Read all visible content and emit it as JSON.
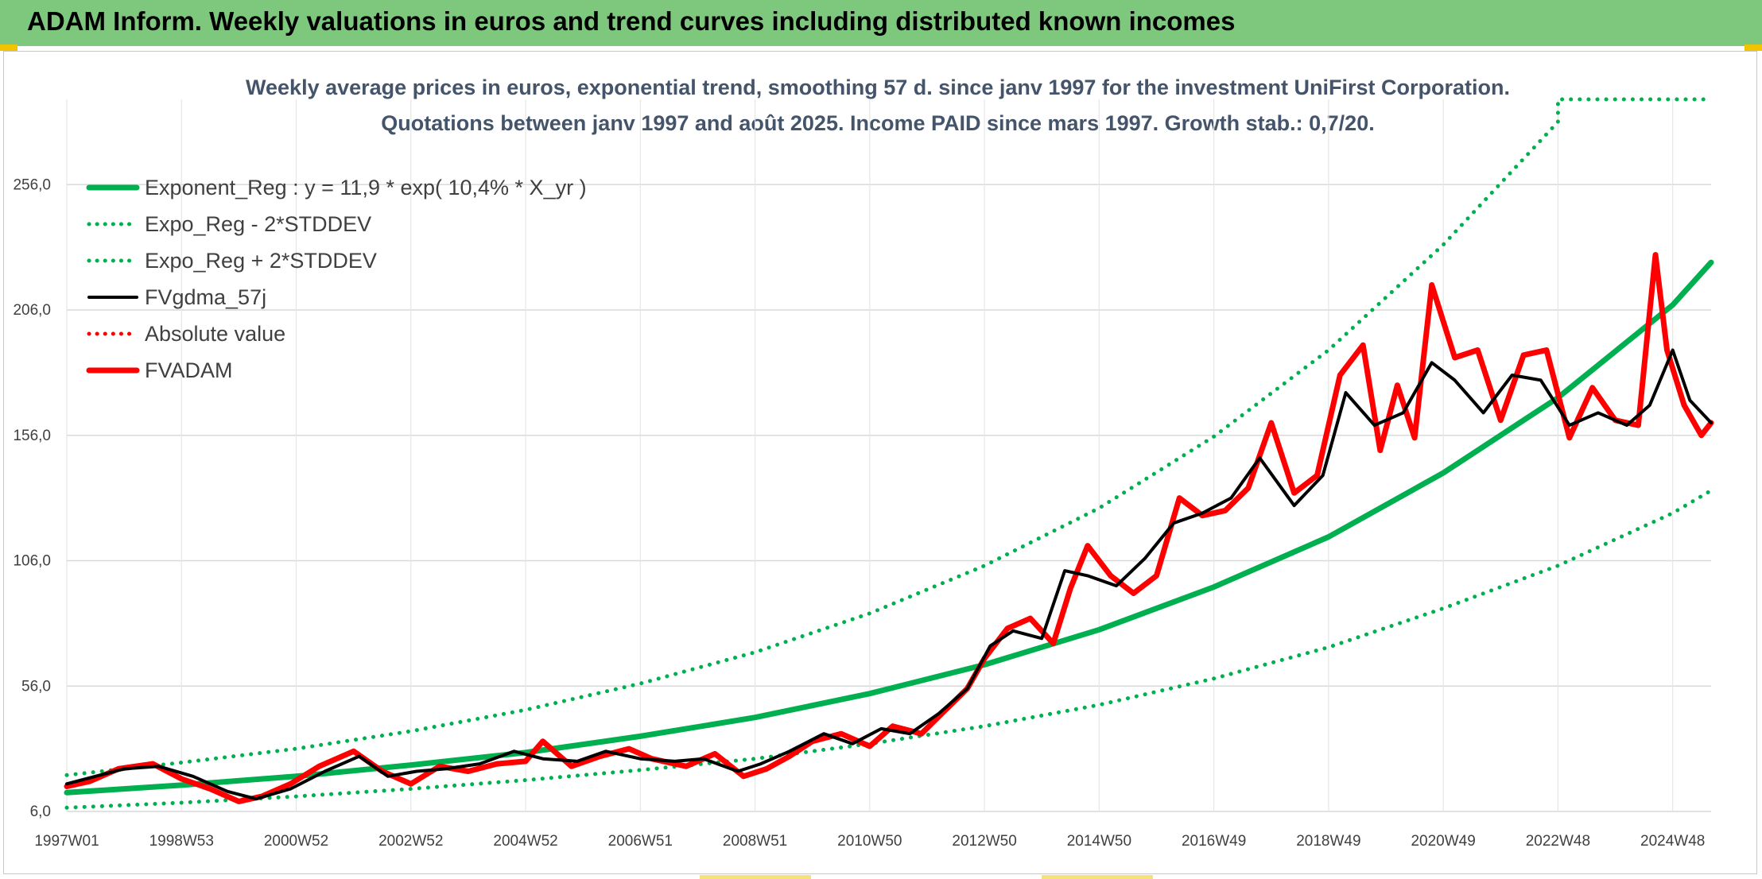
{
  "header": {
    "title": "ADAM Inform. Weekly valuations in euros and trend curves including distributed known incomes"
  },
  "colors": {
    "header_bg": "#7ec87e",
    "trend": "#00b050",
    "smooth": "#000000",
    "value": "#ff0000",
    "grid": "#d9d9d9"
  },
  "chart_data": {
    "type": "line",
    "title_line1": "Weekly average prices in euros, exponential trend, smoothing 57 d. since janv 1997 for the investment UniFirst Corporation.",
    "title_line2": "Quotations between janv 1997 and août 2025. Income PAID since mars 1997. Growth stab.: 0,7/20.",
    "xlabel": "",
    "ylabel": "",
    "ylim": [
      6,
      290
    ],
    "xlim": [
      1997.0,
      2025.67
    ],
    "grid": true,
    "legend_position": "top-left",
    "y_ticks": [
      "256,0",
      "206,0",
      "156,0",
      "106,0",
      "56,0",
      "6,0"
    ],
    "y_tick_values": [
      256,
      206,
      156,
      106,
      56,
      6
    ],
    "x_ticks": [
      "1997W01",
      "1998W53",
      "2000W52",
      "2002W52",
      "2004W52",
      "2006W51",
      "2008W51",
      "2010W50",
      "2012W50",
      "2014W50",
      "2016W49",
      "2018W49",
      "2020W49",
      "2022W48",
      "2024W48"
    ],
    "x_tick_values": [
      1997.0,
      1999.0,
      2001.0,
      2003.0,
      2005.0,
      2007.0,
      2009.0,
      2011.0,
      2013.0,
      2015.0,
      2017.0,
      2019.0,
      2021.0,
      2023.0,
      2025.0
    ],
    "series": [
      {
        "name": "Exponent_Reg : y = 11,9 * exp( 10,4% *  X_yr )",
        "style": "solid-thick",
        "color": "#00b050",
        "x": [
          1997.0,
          1999.0,
          2001.0,
          2003.0,
          2005.0,
          2007.0,
          2009.0,
          2011.0,
          2013.0,
          2015.0,
          2017.0,
          2019.0,
          2021.0,
          2023.0,
          2025.0,
          2025.67
        ],
        "y": [
          13.5,
          16.5,
          20,
          24.5,
          29.5,
          36,
          43.5,
          53,
          64.5,
          78.5,
          95.5,
          115.5,
          141,
          171,
          208,
          225
        ]
      },
      {
        "name": "Expo_Reg - 2*STDDEV",
        "style": "dotted",
        "color": "#00b050",
        "x": [
          1997.0,
          1999.0,
          2001.0,
          2003.0,
          2005.0,
          2007.0,
          2009.0,
          2011.0,
          2013.0,
          2015.0,
          2017.0,
          2019.0,
          2021.0,
          2023.0,
          2025.0,
          2025.67
        ],
        "y": [
          7.5,
          9.5,
          12,
          15,
          18.5,
          22.5,
          27,
          33,
          40,
          48.5,
          59,
          71.5,
          87,
          104,
          125,
          134
        ]
      },
      {
        "name": "Expo_Reg + 2*STDDEV",
        "style": "dotted",
        "color": "#00b050",
        "x": [
          1997.0,
          1999.0,
          2001.0,
          2003.0,
          2005.0,
          2007.0,
          2009.0,
          2011.0,
          2013.0,
          2015.0,
          2017.0,
          2019.0,
          2021.0,
          2023.0,
          2023.0,
          2025.67
        ],
        "y": [
          20.5,
          25.5,
          31,
          38,
          46.5,
          57,
          69.5,
          85,
          104,
          127,
          155.5,
          190,
          232,
          281,
          290,
          290
        ]
      },
      {
        "name": "FVgdma_57j",
        "style": "solid",
        "color": "#000000",
        "x": [
          1997.0,
          1997.5,
          1998.0,
          1998.6,
          1999.2,
          1999.8,
          2000.3,
          2000.9,
          2001.5,
          2002.1,
          2002.6,
          2003.1,
          2003.6,
          2004.2,
          2004.8,
          2005.3,
          2005.9,
          2006.4,
          2007.0,
          2007.6,
          2008.1,
          2008.7,
          2009.1,
          2009.6,
          2010.2,
          2010.7,
          2011.2,
          2011.7,
          2012.2,
          2012.7,
          2013.1,
          2013.5,
          2014.0,
          2014.4,
          2014.8,
          2015.3,
          2015.8,
          2016.3,
          2016.8,
          2017.3,
          2017.8,
          2018.4,
          2018.9,
          2019.3,
          2019.8,
          2020.3,
          2020.8,
          2021.2,
          2021.7,
          2022.2,
          2022.7,
          2023.2,
          2023.7,
          2024.2,
          2024.6,
          2025.0,
          2025.3,
          2025.67
        ],
        "y": [
          17,
          20,
          23,
          24,
          20,
          14,
          11,
          15,
          22,
          28,
          20,
          22,
          23,
          25,
          30,
          27,
          26,
          30,
          27,
          26,
          27,
          22,
          25,
          30,
          37,
          33,
          39,
          37,
          45,
          55,
          72,
          78,
          75,
          102,
          100,
          96,
          107,
          121,
          125,
          131,
          147,
          128,
          140,
          173,
          160,
          165,
          185,
          178,
          165,
          180,
          178,
          160,
          165,
          160,
          168,
          190,
          170,
          161
        ]
      },
      {
        "name": "Absolute value",
        "style": "dotted",
        "color": "#ff0000",
        "x": [
          1997.0,
          1997.4,
          1997.9,
          1998.5,
          1999.0,
          1999.5,
          2000.0,
          2000.4,
          2000.9,
          2001.4,
          2002.0,
          2002.5,
          2003.0,
          2003.5,
          2004.0,
          2004.5,
          2005.0,
          2005.3,
          2005.8,
          2006.3,
          2006.8,
          2007.2,
          2007.8,
          2008.3,
          2008.8,
          2009.2,
          2009.6,
          2010.0,
          2010.5,
          2011.0,
          2011.4,
          2011.9,
          2012.3,
          2012.7,
          2013.0,
          2013.4,
          2013.8,
          2014.2,
          2014.5,
          2014.8,
          2015.2,
          2015.6,
          2016.0,
          2016.4,
          2016.8,
          2017.2,
          2017.6,
          2018.0,
          2018.4,
          2018.8,
          2019.2,
          2019.6,
          2019.9,
          2020.2,
          2020.5,
          2020.8,
          2021.2,
          2021.6,
          2022.0,
          2022.4,
          2022.8,
          2023.2,
          2023.6,
          2024.0,
          2024.4,
          2024.7,
          2024.9,
          2025.2,
          2025.5,
          2025.67
        ],
        "y": [
          16,
          18,
          23,
          25,
          19,
          15,
          10,
          12,
          17,
          24,
          30,
          22,
          17,
          24,
          22,
          25,
          26,
          34,
          24,
          28,
          31,
          27,
          24,
          29,
          20,
          23,
          28,
          34,
          37,
          32,
          40,
          37,
          46,
          55,
          67,
          79,
          83,
          73,
          95,
          112,
          100,
          93,
          100,
          131,
          124,
          126,
          135,
          161,
          133,
          140,
          180,
          192,
          150,
          176,
          155,
          216,
          187,
          190,
          162,
          188,
          190,
          155,
          175,
          162,
          160,
          228,
          190,
          168,
          156,
          161
        ]
      },
      {
        "name": "FVADAM",
        "style": "solid-thick",
        "color": "#ff0000",
        "x": [
          1997.0,
          1997.4,
          1997.9,
          1998.5,
          1999.0,
          1999.5,
          2000.0,
          2000.4,
          2000.9,
          2001.4,
          2002.0,
          2002.5,
          2003.0,
          2003.5,
          2004.0,
          2004.5,
          2005.0,
          2005.3,
          2005.8,
          2006.3,
          2006.8,
          2007.2,
          2007.8,
          2008.3,
          2008.8,
          2009.2,
          2009.6,
          2010.0,
          2010.5,
          2011.0,
          2011.4,
          2011.9,
          2012.3,
          2012.7,
          2013.0,
          2013.4,
          2013.8,
          2014.2,
          2014.5,
          2014.8,
          2015.2,
          2015.6,
          2016.0,
          2016.4,
          2016.8,
          2017.2,
          2017.6,
          2018.0,
          2018.4,
          2018.8,
          2019.2,
          2019.6,
          2019.9,
          2020.2,
          2020.5,
          2020.8,
          2021.2,
          2021.6,
          2022.0,
          2022.4,
          2022.8,
          2023.2,
          2023.6,
          2024.0,
          2024.4,
          2024.7,
          2024.9,
          2025.2,
          2025.5,
          2025.67
        ],
        "y": [
          16,
          18,
          23,
          25,
          19,
          15,
          10,
          12,
          17,
          24,
          30,
          22,
          17,
          24,
          22,
          25,
          26,
          34,
          24,
          28,
          31,
          27,
          24,
          29,
          20,
          23,
          28,
          34,
          37,
          32,
          40,
          37,
          46,
          55,
          67,
          79,
          83,
          73,
          95,
          112,
          100,
          93,
          100,
          131,
          124,
          126,
          135,
          161,
          133,
          140,
          180,
          192,
          150,
          176,
          155,
          216,
          187,
          190,
          162,
          188,
          190,
          155,
          175,
          162,
          160,
          228,
          190,
          168,
          156,
          161
        ]
      }
    ]
  }
}
